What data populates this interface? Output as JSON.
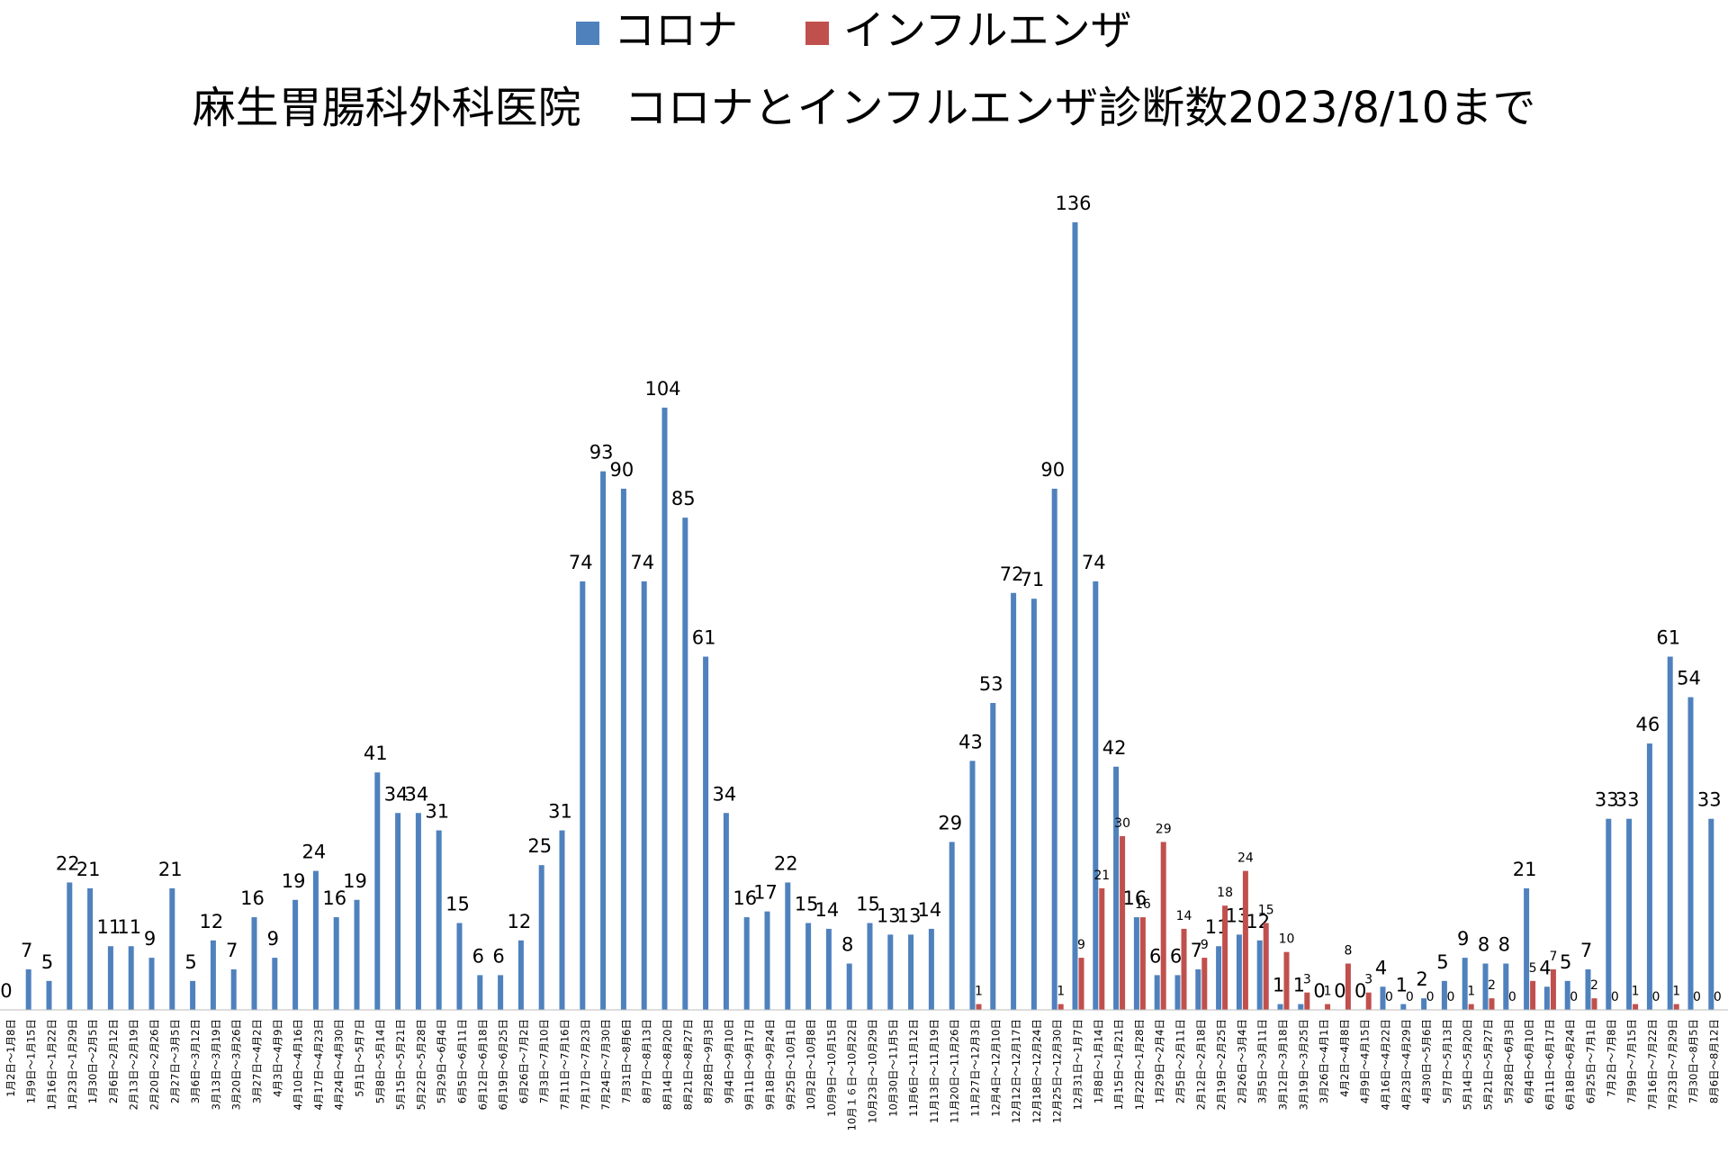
{
  "chart_data": {
    "type": "bar",
    "title": "麻生胃腸科外科医院　コロナとインフルエンザ診断数2023/8/10まで",
    "categories": [
      "1月2日～1月8日",
      "1月9日～1月15日",
      "1月16日～1月22日",
      "1月23日～1月29日",
      "1月30日～2月5日",
      "2月6日～2月12日",
      "2月13日～2月19日",
      "2月20日～2月26日",
      "2月27日～3月5日",
      "3月6日～3月12日",
      "3月13日～3月19日",
      "3月20日～3月26日",
      "3月27日～4月2日",
      "4月3日～4月9日",
      "4月10日～4月16日",
      "4月17日～4月23日",
      "4月24日～4月30日",
      "5月1日～5月7日",
      "5月8日～5月14日",
      "5月15日～5月21日",
      "5月22日～5月28日",
      "5月29日～6月4日",
      "6月5日～6月11日",
      "6月12日～6月18日",
      "6月19日～6月25日",
      "6月26日～7月2日",
      "7月3日～7月10日",
      "7月11日～7月16日",
      "7月17日～7月23日",
      "7月24日～7月30日",
      "7月31日～8月6日",
      "8月7日～8月13日",
      "8月14日～8月20日",
      "8月21日～8月27日",
      "8月28日～9月3日",
      "9月4日～9月10日",
      "9月11日～9月17日",
      "9月18日～9月24日",
      "9月25日～10月1日",
      "10月2日～10月8日",
      "10月9日～10月15日",
      "10月１６日～10月22日",
      "10月23日～10月29日",
      "10月30日～11月5日",
      "11月6日～11月12日",
      "11月13日～11月19日",
      "11月20日～11月26日",
      "11月27日～12月3日",
      "12月4日～12月10日",
      "12月12日～12月17日",
      "12月18日～12月24日",
      "12月25日～12月30日",
      "12月31日～1月7日",
      "1月8日～1月14日",
      "1月15日～1月21日",
      "1月22日～1月28日",
      "1月29日～2月4日",
      "2月5日～2月11日",
      "2月12日～2月18日",
      "2月19日～2月25日",
      "2月26日～3月4日",
      "3月5日～3月11日",
      "3月12日～3月18日",
      "3月19日～3月25日",
      "3月26日～4月1日",
      "4月2日～4月8日",
      "4月9日～4月15日",
      "4月16日～4月22日",
      "4月23日～4月29日",
      "4月30日～5月6日",
      "5月7日～5月13日",
      "5月14日～5月20日",
      "5月21日～5月27日",
      "5月28日～6月3日",
      "6月4日～6月10日",
      "6月11日～6月17日",
      "6月18日～6月24日",
      "6月25日～7月1日",
      "7月2日～7月8日",
      "7月9日～7月15日",
      "7月16日～7月22日",
      "7月23日～7月29日",
      "7月30日～8月5日",
      "8月6日～8月12日"
    ],
    "series": [
      {
        "name": "コロナ",
        "color": "#4f81bd",
        "values": [
          0,
          7,
          5,
          22,
          21,
          11,
          11,
          9,
          21,
          5,
          12,
          7,
          16,
          9,
          19,
          24,
          16,
          19,
          41,
          34,
          34,
          31,
          15,
          6,
          6,
          12,
          25,
          31,
          74,
          93,
          90,
          74,
          104,
          85,
          61,
          34,
          16,
          17,
          22,
          15,
          14,
          8,
          15,
          13,
          13,
          14,
          29,
          43,
          53,
          72,
          71,
          90,
          136,
          74,
          42,
          16,
          6,
          6,
          7,
          11,
          13,
          12,
          1,
          1,
          0,
          0,
          0,
          4,
          1,
          2,
          5,
          9,
          8,
          8,
          21,
          4,
          5,
          7,
          33,
          33,
          46,
          61,
          54,
          33
        ]
      },
      {
        "name": "インフルエンザ",
        "color": "#c0504d",
        "values": [
          null,
          null,
          null,
          null,
          null,
          null,
          null,
          null,
          null,
          null,
          null,
          null,
          null,
          null,
          null,
          null,
          null,
          null,
          null,
          null,
          null,
          null,
          null,
          null,
          null,
          null,
          null,
          null,
          null,
          null,
          null,
          null,
          null,
          null,
          null,
          null,
          null,
          null,
          null,
          null,
          null,
          null,
          null,
          null,
          null,
          null,
          null,
          1,
          null,
          null,
          null,
          1,
          9,
          21,
          30,
          16,
          29,
          14,
          9,
          18,
          24,
          15,
          10,
          3,
          1,
          8,
          3,
          0,
          0,
          0,
          0,
          1,
          2,
          0,
          5,
          7,
          0,
          2,
          0,
          1,
          0,
          1,
          0,
          0
        ]
      }
    ]
  }
}
